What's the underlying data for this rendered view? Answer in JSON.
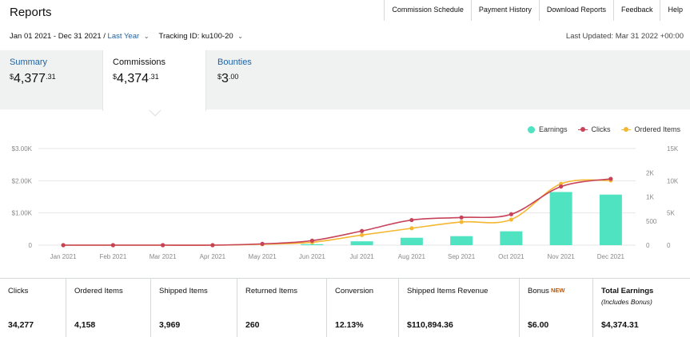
{
  "page": {
    "title": "Reports"
  },
  "topnav": [
    "Commission Schedule",
    "Payment History",
    "Download Reports",
    "Feedback",
    "Help"
  ],
  "filters": {
    "date_range": "Jan 01 2021 - Dec 31 2021",
    "separator": " / ",
    "range_preset": "Last Year",
    "tracking_label": "Tracking ID:",
    "tracking_value": "ku100-20"
  },
  "last_updated": "Last Updated: Mar 31 2022 +00:00",
  "tabs": {
    "summary": {
      "label": "Summary",
      "currency": "$",
      "dollars": "4,377",
      "cents": ".31"
    },
    "commissions": {
      "label": "Commissions",
      "currency": "$",
      "dollars": "4,374",
      "cents": ".31"
    },
    "bounties": {
      "label": "Bounties",
      "currency": "$",
      "dollars": "3",
      "cents": ".00"
    }
  },
  "legend": {
    "earnings": "Earnings",
    "clicks": "Clicks",
    "ordered": "Ordered Items"
  },
  "colors": {
    "earnings": "#50e3c2",
    "clicks": "#c7435a",
    "ordered": "#f5b731",
    "link": "#2162a1",
    "badge": "#c45500"
  },
  "chart_data": {
    "type": "bar",
    "categories": [
      "Jan 2021",
      "Feb 2021",
      "Mar 2021",
      "Apr 2021",
      "May 2021",
      "Jun 2021",
      "Jul 2021",
      "Aug 2021",
      "Sep 2021",
      "Oct 2021",
      "Nov 2021",
      "Dec 2021"
    ],
    "series": [
      {
        "name": "Earnings",
        "kind": "bar",
        "axis": "left",
        "values": [
          0,
          0,
          0,
          0,
          5,
          30,
          120,
          230,
          280,
          430,
          1650,
          1570
        ]
      },
      {
        "name": "Clicks",
        "kind": "line",
        "axis": "right_outer",
        "values": [
          0,
          0,
          0,
          0,
          200,
          700,
          2200,
          3900,
          4300,
          4800,
          9100,
          10300
        ]
      },
      {
        "name": "Ordered Items",
        "kind": "line",
        "axis": "right_inner",
        "values": [
          0,
          0,
          0,
          0,
          20,
          60,
          210,
          350,
          480,
          530,
          1270,
          1340
        ]
      }
    ],
    "y_left": {
      "ticks": [
        "0",
        "$1.00K",
        "$2.00K",
        "$3.00K"
      ],
      "range": [
        0,
        3000
      ]
    },
    "y_right_outer": {
      "ticks": [
        "0",
        "5K",
        "10K",
        "15K"
      ],
      "range": [
        0,
        15000
      ]
    },
    "y_right_inner": {
      "ticks": [
        "0",
        "500",
        "1K",
        "2K"
      ],
      "range": [
        0,
        2000
      ],
      "tick_values": [
        0,
        500,
        1000,
        1500
      ]
    },
    "grid": true
  },
  "stats": [
    {
      "label": "Clicks",
      "value": "34,277"
    },
    {
      "label": "Ordered Items",
      "value": "4,158"
    },
    {
      "label": "Shipped Items",
      "value": "3,969"
    },
    {
      "label": "Returned Items",
      "value": "260"
    },
    {
      "label": "Conversion",
      "value": "12.13%"
    },
    {
      "label": "Shipped Items Revenue",
      "value": "$110,894.36"
    },
    {
      "label": "Bonus",
      "badge": "NEW",
      "value": "$6.00"
    },
    {
      "label": "Total Earnings",
      "sub": "(Includes Bonus)",
      "value": "$4,374.31"
    }
  ]
}
